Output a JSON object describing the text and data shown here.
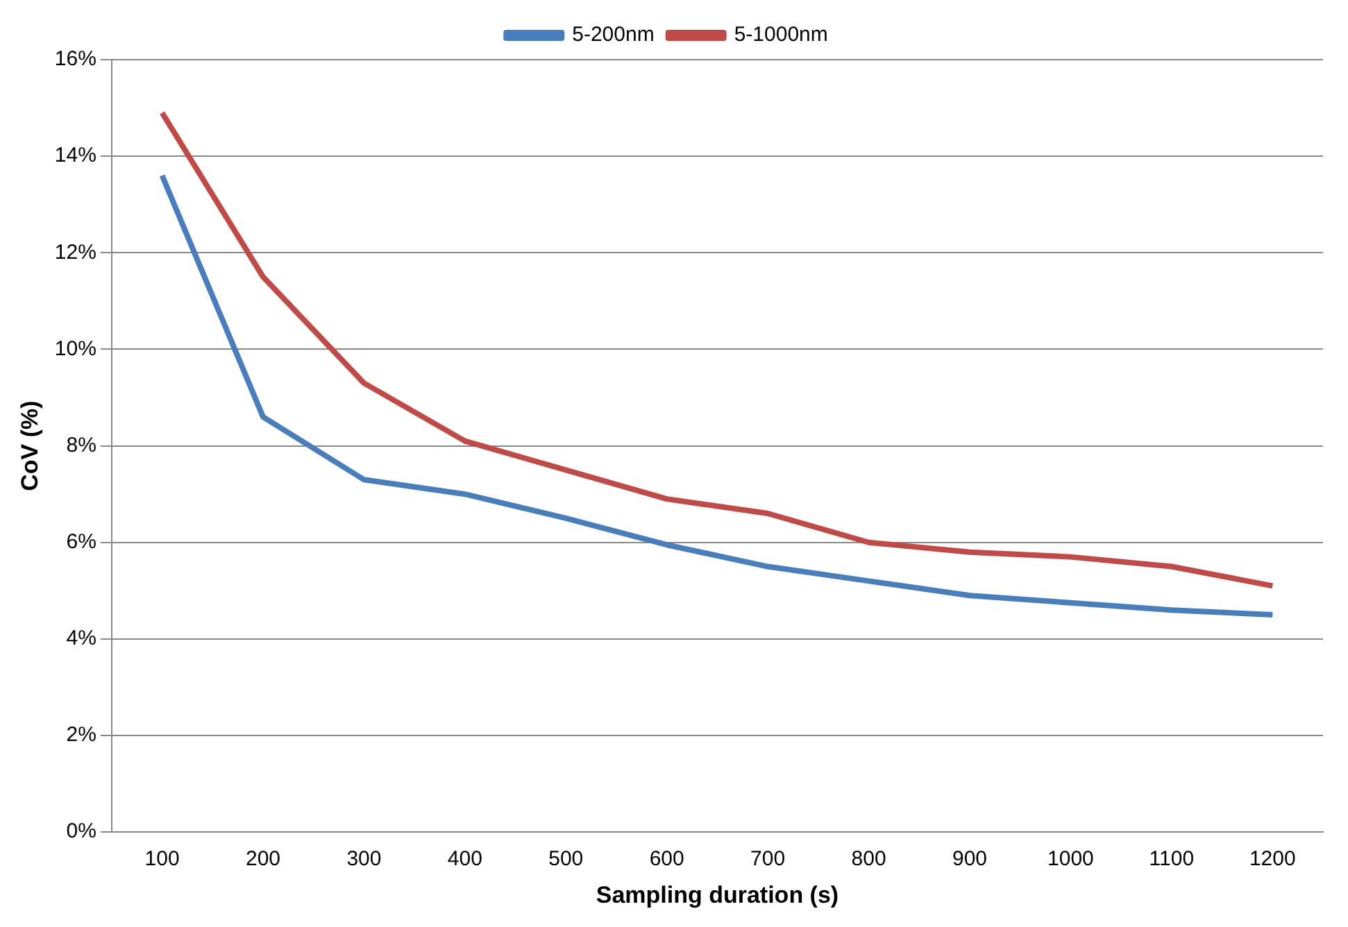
{
  "chart_data": {
    "type": "line",
    "xlabel": "Sampling duration (s)",
    "ylabel": "CoV (%)",
    "categories": [
      "100",
      "200",
      "300",
      "400",
      "500",
      "600",
      "700",
      "800",
      "900",
      "1000",
      "1100",
      "1200"
    ],
    "series": [
      {
        "name": "5-200nm",
        "color": "#4a7ebb",
        "values": [
          13.6,
          8.6,
          7.3,
          7.0,
          6.5,
          5.95,
          5.5,
          5.2,
          4.9,
          4.75,
          4.6,
          4.5
        ]
      },
      {
        "name": "5-1000nm",
        "color": "#be4b48",
        "values": [
          14.9,
          11.5,
          9.3,
          8.1,
          7.5,
          6.9,
          6.6,
          6.0,
          5.8,
          5.7,
          5.5,
          5.1
        ]
      }
    ],
    "ylim": [
      0,
      16
    ],
    "yticks": [
      {
        "value": 0,
        "label": "0%"
      },
      {
        "value": 2,
        "label": "2%"
      },
      {
        "value": 4,
        "label": "4%"
      },
      {
        "value": 6,
        "label": "6%"
      },
      {
        "value": 8,
        "label": "8%"
      },
      {
        "value": 10,
        "label": "10%"
      },
      {
        "value": 12,
        "label": "12%"
      },
      {
        "value": 14,
        "label": "14%"
      },
      {
        "value": 16,
        "label": "16%"
      }
    ],
    "grid": "y",
    "legend": "top",
    "marker": "none",
    "line_style": "solid"
  }
}
